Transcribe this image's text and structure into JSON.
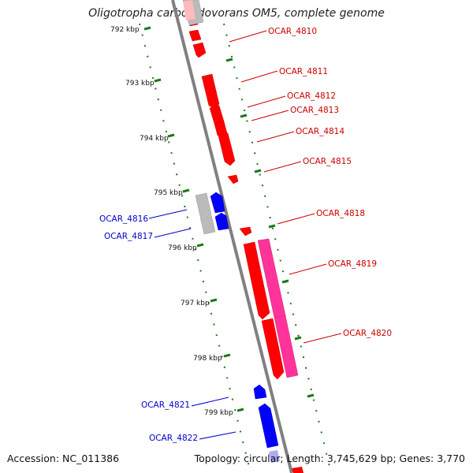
{
  "title": "Oligotropha carboxidovorans OM5, complete genome",
  "accession": "Accession: NC_011386",
  "summary": "Topology: circular; Length: 3,745,629 bp; Genes: 3,770",
  "colors": {
    "forward": "#ff0000",
    "reverse": "#0000ff",
    "pink": "#ff3399",
    "gray": "#bbbbbb",
    "ticks": "#1a7a1a",
    "backbone": "#808080"
  },
  "kbp_labels": [
    "792 kbp",
    "793 kbp",
    "794 kbp",
    "795 kbp",
    "796 kbp",
    "797 kbp",
    "798 kbp",
    "799 kbp"
  ],
  "red_genes": [
    "OCAR_4810",
    "OCAR_4811",
    "OCAR_4812",
    "OCAR_4813",
    "OCAR_4814",
    "OCAR_4815",
    "OCAR_4818",
    "OCAR_4819",
    "OCAR_4820"
  ],
  "blue_genes": [
    "OCAR_4816",
    "OCAR_4817",
    "OCAR_4821",
    "OCAR_4822"
  ]
}
